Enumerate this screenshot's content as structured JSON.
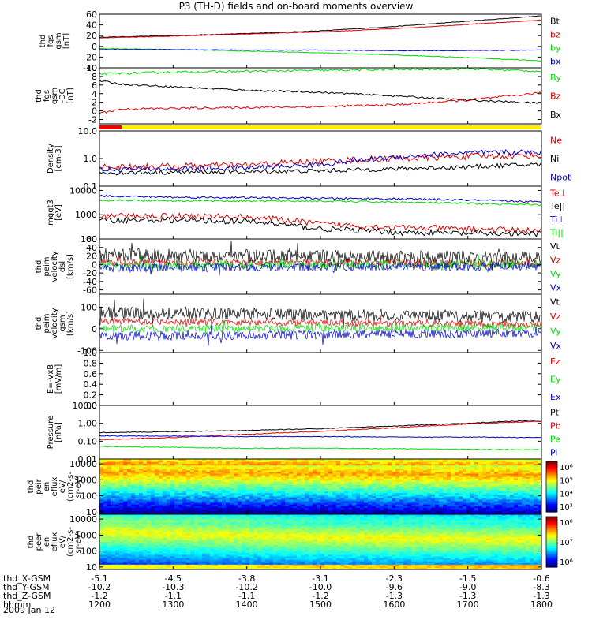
{
  "title": "P3 (TH-D) fields and on-board moments overview",
  "date_label": "2009 Jan 12",
  "colors": {
    "black": "#000000",
    "red": "#dd0000",
    "green": "#00dd00",
    "blue": "#0000cc",
    "yellow": "#ffee00",
    "barred": "#ee0000"
  },
  "chart_data": [
    {
      "type": "line",
      "ylabel": [
        "thd",
        "fgs",
        "gsm",
        "[nT]"
      ],
      "ylim": [
        -40,
        60
      ],
      "ticks": [
        "60",
        "40",
        "20",
        "0",
        "-20",
        "-40"
      ],
      "tickvals": [
        60,
        40,
        20,
        0,
        -20,
        -40
      ],
      "legend": [
        {
          "label": "Bt",
          "color": "black"
        },
        {
          "label": "bz",
          "color": "red"
        },
        {
          "label": "by",
          "color": "green"
        },
        {
          "label": "bx",
          "color": "blue"
        }
      ],
      "series": [
        {
          "name": "Bt",
          "color": "black",
          "x": [
            1200,
            1300,
            1400,
            1500,
            1600,
            1700,
            1800
          ],
          "y": [
            17,
            20,
            24,
            29,
            37,
            47,
            57
          ],
          "noise": 0.5
        },
        {
          "name": "bz",
          "color": "red",
          "x": [
            1200,
            1300,
            1400,
            1500,
            1600,
            1700,
            1800
          ],
          "y": [
            16,
            19,
            23,
            27,
            33,
            41,
            49
          ],
          "noise": 0.5
        },
        {
          "name": "by",
          "color": "green",
          "x": [
            1200,
            1300,
            1400,
            1500,
            1600,
            1700,
            1800
          ],
          "y": [
            -4,
            -6,
            -9,
            -12,
            -16,
            -21,
            -27
          ],
          "noise": 0.6
        },
        {
          "name": "bx",
          "color": "blue",
          "x": [
            1200,
            1300,
            1400,
            1500,
            1600,
            1700,
            1800
          ],
          "y": [
            -6,
            -6,
            -7,
            -7,
            -8,
            -8,
            -7
          ],
          "noise": 0.6
        }
      ]
    },
    {
      "type": "line",
      "ylabel": [
        "thd",
        "fgs",
        "gsm",
        "-DC",
        "[nT]"
      ],
      "ylim": [
        -3,
        10
      ],
      "ticks": [
        "10",
        "8",
        "6",
        "4",
        "2",
        "0",
        "-2"
      ],
      "tickvals": [
        10,
        8,
        6,
        4,
        2,
        0,
        -2
      ],
      "legend": [
        {
          "label": "By",
          "color": "green"
        },
        {
          "label": "Bz",
          "color": "red"
        },
        {
          "label": "Bx",
          "color": "black"
        }
      ],
      "series": [
        {
          "name": "By",
          "color": "green",
          "x": [
            1200,
            1300,
            1400,
            1500,
            1600,
            1700,
            1800
          ],
          "y": [
            8.6,
            9.0,
            9.2,
            9.4,
            9.6,
            9.8,
            9.2
          ],
          "noise": 0.25
        },
        {
          "name": "Bx",
          "color": "black",
          "x": [
            1200,
            1230,
            1300,
            1400,
            1500,
            1600,
            1700,
            1800
          ],
          "y": [
            7.0,
            6.2,
            5.6,
            4.8,
            4.3,
            3.5,
            2.5,
            1.8
          ],
          "noise": 0.2
        },
        {
          "name": "Bz",
          "color": "red",
          "x": [
            1200,
            1230,
            1300,
            1400,
            1500,
            1600,
            1700,
            1800
          ],
          "y": [
            -0.5,
            0.4,
            0.6,
            0.8,
            1.0,
            1.4,
            2.5,
            4.2
          ],
          "noise": 0.25
        }
      ]
    },
    {
      "type": "bar_strip",
      "colors": [
        "red",
        "yellow"
      ],
      "segments": [
        [
          1200,
          1230,
          "red"
        ],
        [
          1230,
          1800,
          "yellow"
        ]
      ]
    },
    {
      "type": "line",
      "scale": "log",
      "ylabel": [
        "Density",
        "[cm-3]"
      ],
      "ylim": [
        0.1,
        10
      ],
      "ticks": [
        "10.0",
        "1.0",
        "0.1"
      ],
      "tickvals": [
        10,
        1,
        0.1
      ],
      "legend": [
        {
          "label": "Ne",
          "color": "red"
        },
        {
          "label": "Ni",
          "color": "black"
        },
        {
          "label": "Npot",
          "color": "blue"
        }
      ],
      "series": [
        {
          "name": "Ni",
          "color": "black",
          "x": [
            1200,
            1300,
            1400,
            1500,
            1600,
            1700,
            1800
          ],
          "y": [
            0.3,
            0.32,
            0.33,
            0.36,
            0.42,
            0.5,
            0.62
          ],
          "noise": 0.08
        },
        {
          "name": "Ne",
          "color": "red",
          "x": [
            1200,
            1300,
            1400,
            1500,
            1600,
            1700,
            1800
          ],
          "y": [
            0.5,
            0.52,
            0.58,
            0.8,
            1.0,
            1.2,
            1.3
          ],
          "noise": 0.12
        },
        {
          "name": "Npot",
          "color": "blue",
          "x": [
            1200,
            1300,
            1400,
            1500,
            1600,
            1700,
            1800
          ],
          "y": [
            0.4,
            0.42,
            0.45,
            0.6,
            1.1,
            1.6,
            1.7
          ],
          "noise": 0.1
        }
      ]
    },
    {
      "type": "line",
      "scale": "log",
      "ylabel": [
        "mggt3",
        "[eV]"
      ],
      "ylim": [
        100,
        15000
      ],
      "ticks": [
        "10000",
        "1000",
        "100"
      ],
      "tickvals": [
        10000,
        1000,
        100
      ],
      "legend": [
        {
          "label": "Te⊥",
          "color": "red"
        },
        {
          "label": "Te||",
          "color": "black"
        },
        {
          "label": "Ti⊥",
          "color": "blue"
        },
        {
          "label": "Ti||",
          "color": "green"
        }
      ],
      "series": [
        {
          "name": "Ti⊥",
          "color": "blue",
          "x": [
            1200,
            1300,
            1400,
            1500,
            1600,
            1700,
            1800
          ],
          "y": [
            6000,
            5200,
            5000,
            4700,
            4500,
            4000,
            3300
          ],
          "noise": 0.04
        },
        {
          "name": "Ti||",
          "color": "green",
          "x": [
            1200,
            1300,
            1400,
            1500,
            1600,
            1700,
            1800
          ],
          "y": [
            4000,
            3800,
            3700,
            3600,
            3300,
            2900,
            2500
          ],
          "noise": 0.04
        },
        {
          "name": "Te⊥",
          "color": "red",
          "x": [
            1200,
            1300,
            1400,
            1500,
            1600,
            1700,
            1800
          ],
          "y": [
            900,
            900,
            800,
            420,
            300,
            260,
            220
          ],
          "noise": 0.12
        },
        {
          "name": "Te||",
          "color": "black",
          "x": [
            1200,
            1300,
            1400,
            1500,
            1600,
            1700,
            1800
          ],
          "y": [
            600,
            600,
            520,
            260,
            190,
            170,
            160
          ],
          "noise": 0.12
        }
      ]
    },
    {
      "type": "line",
      "ylabel": [
        "thd",
        "peim",
        "velocity",
        "dsl",
        "[km/s]"
      ],
      "ylim": [
        -70,
        60
      ],
      "ticks": [
        "60",
        "40",
        "20",
        "0",
        "-20",
        "-40",
        "-60"
      ],
      "tickvals": [
        60,
        40,
        20,
        0,
        -20,
        -40,
        -60
      ],
      "legend": [
        {
          "label": "Vt",
          "color": "black"
        },
        {
          "label": "Vz",
          "color": "red"
        },
        {
          "label": "Vy",
          "color": "green"
        },
        {
          "label": "Vx",
          "color": "blue"
        }
      ],
      "series": [
        {
          "name": "Vt",
          "color": "black",
          "x": [
            1200,
            1800
          ],
          "y": [
            22,
            15
          ],
          "noise": 16,
          "dense": true
        },
        {
          "name": "Vz",
          "color": "red",
          "x": [
            1200,
            1800
          ],
          "y": [
            5,
            3
          ],
          "noise": 8,
          "dense": true
        },
        {
          "name": "Vy",
          "color": "green",
          "x": [
            1200,
            1800
          ],
          "y": [
            -2,
            1
          ],
          "noise": 10,
          "dense": true
        },
        {
          "name": "Vx",
          "color": "blue",
          "x": [
            1200,
            1800
          ],
          "y": [
            -8,
            -4
          ],
          "noise": 10,
          "dense": true
        }
      ]
    },
    {
      "type": "line",
      "ylabel": [
        "thd",
        "peim",
        "velocity",
        "gsm",
        "[km/s]"
      ],
      "ylim": [
        -110,
        160
      ],
      "ticks": [
        "100",
        "0",
        "-100"
      ],
      "tickvals": [
        100,
        0,
        -100
      ],
      "legend": [
        {
          "label": "Vt",
          "color": "black"
        },
        {
          "label": "Vz",
          "color": "red"
        },
        {
          "label": "Vy",
          "color": "green"
        },
        {
          "label": "Vx",
          "color": "blue"
        }
      ],
      "series": [
        {
          "name": "Vt",
          "color": "black",
          "x": [
            1200,
            1800
          ],
          "y": [
            75,
            55
          ],
          "noise": 28,
          "dense": true
        },
        {
          "name": "Vz",
          "color": "red",
          "x": [
            1200,
            1800
          ],
          "y": [
            35,
            20
          ],
          "noise": 15,
          "dense": true
        },
        {
          "name": "Vy",
          "color": "green",
          "x": [
            1200,
            1800
          ],
          "y": [
            0,
            5
          ],
          "noise": 18,
          "dense": true
        },
        {
          "name": "Vx",
          "color": "blue",
          "x": [
            1200,
            1800
          ],
          "y": [
            -35,
            -20
          ],
          "noise": 20,
          "dense": true
        }
      ]
    },
    {
      "type": "line",
      "ylabel": [
        "E=-VxB",
        "[mV/m]"
      ],
      "ylim": [
        0,
        1
      ],
      "ticks": [
        "1.0",
        "0.8",
        "0.6",
        "0.4",
        "0.2",
        "0.0"
      ],
      "tickvals": [
        1,
        0.8,
        0.6,
        0.4,
        0.2,
        0
      ],
      "legend": [
        {
          "label": "Ez",
          "color": "red"
        },
        {
          "label": "Ey",
          "color": "green"
        },
        {
          "label": "Ex",
          "color": "blue"
        }
      ],
      "series": []
    },
    {
      "type": "line",
      "scale": "log",
      "ylabel": [
        "Pressure",
        "[nPa]"
      ],
      "ylim": [
        0.01,
        10
      ],
      "ticks": [
        "10.00",
        "1.00",
        "0.10",
        "0.01"
      ],
      "tickvals": [
        10,
        1,
        0.1,
        0.01
      ],
      "legend": [
        {
          "label": "Pt",
          "color": "black"
        },
        {
          "label": "Pb",
          "color": "red"
        },
        {
          "label": "Pe",
          "color": "green"
        },
        {
          "label": "Pi",
          "color": "blue"
        }
      ],
      "series": [
        {
          "name": "Pt",
          "color": "black",
          "x": [
            1200,
            1300,
            1400,
            1500,
            1600,
            1700,
            1800
          ],
          "y": [
            0.3,
            0.34,
            0.4,
            0.5,
            0.7,
            1.0,
            1.5
          ],
          "noise": 0.02
        },
        {
          "name": "Pb",
          "color": "red",
          "x": [
            1200,
            1300,
            1400,
            1500,
            1600,
            1700,
            1800
          ],
          "y": [
            0.12,
            0.16,
            0.24,
            0.35,
            0.55,
            0.9,
            1.3
          ],
          "noise": 0.02
        },
        {
          "name": "Pi",
          "color": "blue",
          "x": [
            1200,
            1300,
            1400,
            1500,
            1600,
            1700,
            1800
          ],
          "y": [
            0.2,
            0.19,
            0.18,
            0.18,
            0.17,
            0.17,
            0.16
          ],
          "noise": 0.02
        },
        {
          "name": "Pe",
          "color": "green",
          "x": [
            1200,
            1300,
            1400,
            1500,
            1600,
            1700,
            1800
          ],
          "y": [
            0.05,
            0.045,
            0.04,
            0.04,
            0.038,
            0.035,
            0.033
          ],
          "noise": 0.02
        }
      ]
    },
    {
      "type": "heatmap",
      "scale": "log",
      "ylabel": [
        "thd",
        "peir",
        "en",
        "eflux",
        "eV/",
        "(cm2-s-",
        "sr-eV)"
      ],
      "ylim": [
        7,
        20000
      ],
      "ticks": [
        "10000",
        "1000",
        "100",
        "10"
      ],
      "tickvals": [
        10000,
        1000,
        100,
        10
      ],
      "colorbar_ticks": [
        "10⁶",
        "10⁵",
        "10⁴",
        "10³"
      ],
      "colorbar_min_exp": 2.5,
      "colorbar_max_exp": 6.5,
      "peak_energy": [
        [
          1200,
          3000
        ],
        [
          1500,
          2500
        ],
        [
          1800,
          2000
        ]
      ]
    },
    {
      "type": "heatmap",
      "scale": "log",
      "ylabel": [
        "thd",
        "peer",
        "en",
        "eflux",
        "eV/",
        "(cm2-s-",
        "sr-eV)"
      ],
      "ylim": [
        7,
        20000
      ],
      "ticks": [
        "10000",
        "1000",
        "100",
        "10"
      ],
      "tickvals": [
        10000,
        1000,
        100,
        10
      ],
      "colorbar_ticks": [
        "10⁸",
        "10⁷",
        "10⁶"
      ],
      "colorbar_min_exp": 5.3,
      "colorbar_max_exp": 8.3,
      "peak_energy": [
        [
          1200,
          1500
        ],
        [
          1500,
          700
        ],
        [
          1800,
          500
        ]
      ]
    }
  ],
  "xaxis": {
    "range": [
      1200,
      1800
    ],
    "rows": [
      {
        "label": "thd_X-GSM",
        "values": [
          "-5.1",
          "-4.5",
          "-3.8",
          "-3.1",
          "-2.3",
          "-1.5",
          "-0.6"
        ]
      },
      {
        "label": "thd_Y-GSM",
        "values": [
          "-10.2",
          "-10.3",
          "-10.2",
          "-10.0",
          "-9.6",
          "-9.0",
          "-8.3"
        ]
      },
      {
        "label": "thd_Z-GSM",
        "values": [
          "-1.2",
          "-1.1",
          "-1.1",
          "-1.2",
          "-1.3",
          "-1.3",
          "-1.3"
        ]
      },
      {
        "label": "hhmm",
        "values": [
          "1200",
          "1300",
          "1400",
          "1500",
          "1600",
          "1700",
          "1800"
        ]
      }
    ],
    "tick_times": [
      1200,
      1300,
      1400,
      1500,
      1600,
      1700,
      1800
    ]
  }
}
